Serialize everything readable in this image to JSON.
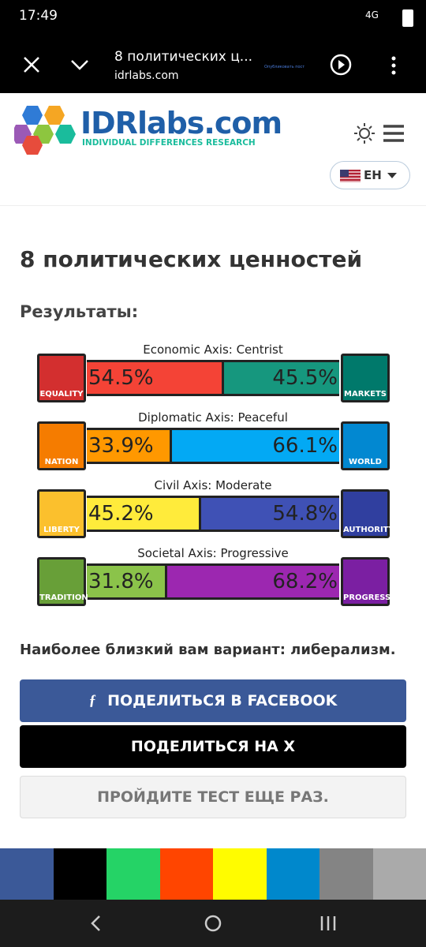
{
  "status_bar": {
    "time": "17:49",
    "network": "4G"
  },
  "browser_bar": {
    "title": "8 политических ц...",
    "url": "idrlabs.com",
    "hint": "Опубликовать пост"
  },
  "header": {
    "logo": "IDRlabs.com",
    "tagline": "INDIVIDUAL DIFFERENCES RESEARCH",
    "language": "ЕН"
  },
  "page": {
    "title": "8 политических ценностей",
    "results_heading": "Результаты:",
    "axes": [
      {
        "title": "Economic Axis: Centrist",
        "left": {
          "name": "EQUALITY",
          "value": 54.5,
          "label": "54.5%",
          "color": "#f44336",
          "icon_color": "#d32f2f"
        },
        "right": {
          "name": "MARKETS",
          "value": 45.5,
          "label": "45.5%",
          "color": "#16977e",
          "icon_color": "#00796b"
        }
      },
      {
        "title": "Diplomatic Axis: Peaceful",
        "left": {
          "name": "NATION",
          "value": 33.9,
          "label": "33.9%",
          "color": "#ff9800",
          "icon_color": "#f57c00"
        },
        "right": {
          "name": "WORLD",
          "value": 66.1,
          "label": "66.1%",
          "color": "#03a9f4",
          "icon_color": "#0288d1"
        }
      },
      {
        "title": "Civil Axis: Moderate",
        "left": {
          "name": "LIBERTY",
          "value": 45.2,
          "label": "45.2%",
          "color": "#ffeb3b",
          "icon_color": "#fbc02d"
        },
        "right": {
          "name": "AUTHORITY",
          "value": 54.8,
          "label": "54.8%",
          "color": "#3f51b5",
          "icon_color": "#303f9f"
        }
      },
      {
        "title": "Societal Axis: Progressive",
        "left": {
          "name": "TRADITION",
          "value": 31.8,
          "label": "31.8%",
          "color": "#8bc34a",
          "icon_color": "#689f38"
        },
        "right": {
          "name": "PROGRESS",
          "value": 68.2,
          "label": "68.2%",
          "color": "#9c27b0",
          "icon_color": "#7b1fa2"
        }
      }
    ],
    "closest_match": "Наиболее близкий вам вариант: либерализм.",
    "buttons": [
      "ПОДЕЛИТЬСЯ В FACEBOOK",
      "ПОДЕЛИТЬСЯ НА X",
      "ПРОЙДИТЕ ТЕСТ ЕЩЕ РАЗ."
    ]
  }
}
